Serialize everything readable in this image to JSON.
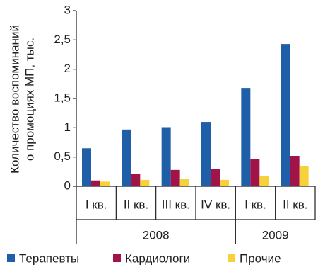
{
  "chart_data": {
    "type": "bar",
    "ylabel": [
      "Количество воспоминаний",
      "о промоциях МП, тыс."
    ],
    "categories": [
      "I кв.",
      "II кв.",
      "III кв.",
      "IV кв.",
      "I кв.",
      "II кв."
    ],
    "category_groups": [
      "2008",
      "2008",
      "2008",
      "2008",
      "2009",
      "2009"
    ],
    "series": [
      {
        "name": "Терапевты",
        "color": "#1f5fa8",
        "values": [
          0.65,
          0.97,
          1.01,
          1.1,
          1.68,
          2.43
        ]
      },
      {
        "name": "Кардиологи",
        "color": "#a0144a",
        "values": [
          0.1,
          0.21,
          0.28,
          0.3,
          0.47,
          0.52
        ]
      },
      {
        "name": "Прочие",
        "color": "#f6d23a",
        "values": [
          0.08,
          0.11,
          0.13,
          0.11,
          0.17,
          0.34
        ]
      }
    ],
    "ylim": [
      0,
      3
    ],
    "yticks": [
      0,
      {
        "value": 0.5,
        "label": "0,5"
      },
      1,
      {
        "value": 1.5,
        "label": "1,5"
      },
      2,
      {
        "value": 2.5,
        "label": "2,5"
      },
      3
    ]
  }
}
